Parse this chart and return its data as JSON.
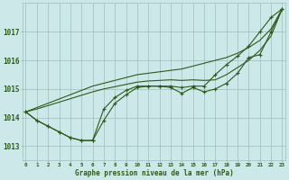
{
  "hours": [
    0,
    1,
    2,
    3,
    4,
    5,
    6,
    7,
    8,
    9,
    10,
    11,
    12,
    13,
    14,
    15,
    16,
    17,
    18,
    19,
    20,
    21,
    22,
    23
  ],
  "pressure_marked1": [
    1014.2,
    1013.9,
    1013.7,
    1013.5,
    1013.3,
    1013.2,
    1013.2,
    1013.9,
    1014.5,
    1014.8,
    1015.05,
    1015.1,
    1015.1,
    1015.05,
    1014.85,
    1015.05,
    1014.9,
    1015.0,
    1015.2,
    1015.55,
    1016.1,
    1016.2,
    1017.0,
    1017.8
  ],
  "pressure_marked2": [
    1014.2,
    1013.9,
    1013.7,
    1013.5,
    1013.3,
    1013.2,
    1013.2,
    1014.3,
    1014.7,
    1014.95,
    1015.1,
    1015.1,
    1015.1,
    1015.1,
    1015.05,
    1015.1,
    1015.1,
    1015.5,
    1015.85,
    1016.15,
    1016.5,
    1017.0,
    1017.5,
    1017.8
  ],
  "pressure_trend1": [
    1014.2,
    1014.35,
    1014.5,
    1014.65,
    1014.8,
    1014.95,
    1015.1,
    1015.2,
    1015.3,
    1015.4,
    1015.5,
    1015.55,
    1015.6,
    1015.65,
    1015.7,
    1015.8,
    1015.9,
    1016.0,
    1016.1,
    1016.25,
    1016.45,
    1016.7,
    1017.1,
    1017.8
  ],
  "pressure_trend2": [
    1014.2,
    1014.3,
    1014.42,
    1014.54,
    1014.66,
    1014.78,
    1014.9,
    1015.0,
    1015.08,
    1015.16,
    1015.24,
    1015.28,
    1015.3,
    1015.32,
    1015.3,
    1015.32,
    1015.3,
    1015.32,
    1015.5,
    1015.75,
    1016.0,
    1016.35,
    1016.85,
    1017.8
  ],
  "bg_color": "#cce8e8",
  "line_color": "#2d5a1b",
  "grid_color": "#9dbfbf",
  "text_color": "#2d5a1b",
  "ylim_min": 1012.5,
  "ylim_max": 1018.0,
  "yticks": [
    1013,
    1014,
    1015,
    1016,
    1017
  ],
  "xlabel_label": "Graphe pression niveau de la mer (hPa)"
}
